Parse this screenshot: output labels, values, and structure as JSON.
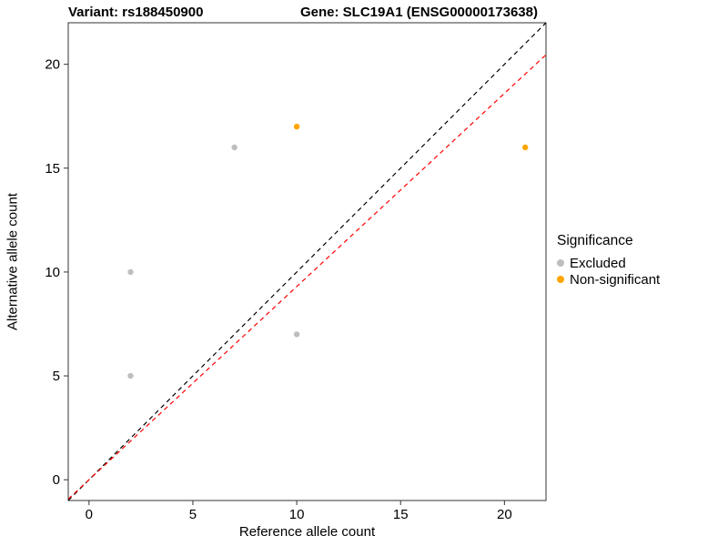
{
  "chart_data": {
    "type": "scatter",
    "title_left": "Variant: rs188450900",
    "title_right": "Gene: SLC19A1 (ENSG00000173638)",
    "xlabel": "Reference allele count",
    "ylabel": "Alternative allele count",
    "xlim": [
      -1,
      22
    ],
    "ylim": [
      -1,
      22
    ],
    "x_ticks": [
      0,
      5,
      10,
      15,
      20
    ],
    "y_ticks": [
      0,
      5,
      10,
      15,
      20
    ],
    "grid": false,
    "panel_border_color": "#333333",
    "series": [
      {
        "name": "Excluded",
        "color": "#BEBEBE",
        "points": [
          [
            2,
            5
          ],
          [
            2,
            10
          ],
          [
            7,
            16
          ],
          [
            10,
            7
          ]
        ]
      },
      {
        "name": "Non-significant",
        "color": "#FFA500",
        "points": [
          [
            10,
            17
          ],
          [
            21,
            16
          ]
        ]
      }
    ],
    "lines": [
      {
        "name": "identity-line",
        "color": "#000000",
        "dash": "5,4",
        "slope": 1,
        "intercept": 0
      },
      {
        "name": "expected-ratio-line",
        "color": "#FF0000",
        "dash": "5,4",
        "slope": 0.93,
        "intercept": 0
      }
    ],
    "legend": {
      "title": "Significance",
      "position": "right",
      "entries": [
        {
          "label": "Excluded",
          "color": "#BEBEBE"
        },
        {
          "label": "Non-significant",
          "color": "#FFA500"
        }
      ]
    }
  }
}
